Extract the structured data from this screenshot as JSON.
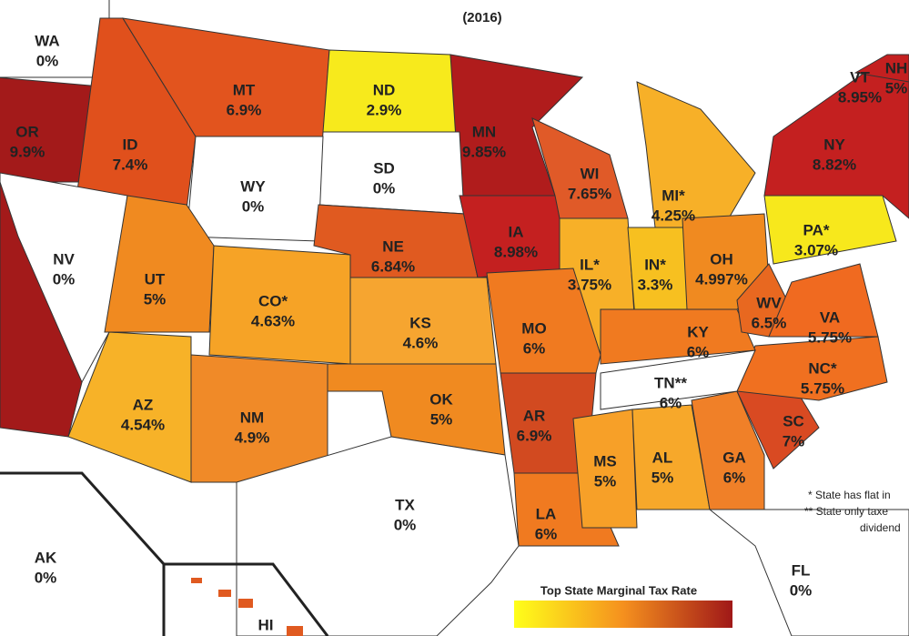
{
  "subtitle": "(2016)",
  "states": [
    {
      "abbr": "WA",
      "rate": "0%"
    },
    {
      "abbr": "OR",
      "rate": "9.9%"
    },
    {
      "abbr": "ID",
      "rate": "7.4%"
    },
    {
      "abbr": "MT",
      "rate": "6.9%"
    },
    {
      "abbr": "ND",
      "rate": "2.9%"
    },
    {
      "abbr": "MN",
      "rate": "9.85%"
    },
    {
      "abbr": "SD",
      "rate": "0%"
    },
    {
      "abbr": "WY",
      "rate": "0%"
    },
    {
      "abbr": "NV",
      "rate": "0%"
    },
    {
      "abbr": "UT",
      "rate": "5%"
    },
    {
      "abbr": "CO*",
      "rate": "4.63%"
    },
    {
      "abbr": "NE",
      "rate": "6.84%"
    },
    {
      "abbr": "KS",
      "rate": "4.6%"
    },
    {
      "abbr": "IA",
      "rate": "8.98%"
    },
    {
      "abbr": "WI",
      "rate": "7.65%"
    },
    {
      "abbr": "MI*",
      "rate": "4.25%"
    },
    {
      "abbr": "IL*",
      "rate": "3.75%"
    },
    {
      "abbr": "IN*",
      "rate": "3.3%"
    },
    {
      "abbr": "OH",
      "rate": "4.997%"
    },
    {
      "abbr": "PA*",
      "rate": "3.07%"
    },
    {
      "abbr": "NY",
      "rate": "8.82%"
    },
    {
      "abbr": "VT",
      "rate": "8.95%"
    },
    {
      "abbr": "NH",
      "rate": "5%"
    },
    {
      "abbr": "AZ",
      "rate": "4.54%"
    },
    {
      "abbr": "NM",
      "rate": "4.9%"
    },
    {
      "abbr": "OK",
      "rate": "5%"
    },
    {
      "abbr": "TX",
      "rate": "0%"
    },
    {
      "abbr": "MO",
      "rate": "6%"
    },
    {
      "abbr": "AR",
      "rate": "6.9%"
    },
    {
      "abbr": "LA",
      "rate": "6%"
    },
    {
      "abbr": "MS",
      "rate": "5%"
    },
    {
      "abbr": "AL",
      "rate": "5%"
    },
    {
      "abbr": "GA",
      "rate": "6%"
    },
    {
      "abbr": "SC",
      "rate": "7%"
    },
    {
      "abbr": "NC*",
      "rate": "5.75%"
    },
    {
      "abbr": "TN**",
      "rate": "6%"
    },
    {
      "abbr": "KY",
      "rate": "6%"
    },
    {
      "abbr": "WV",
      "rate": "6.5%"
    },
    {
      "abbr": "VA",
      "rate": "5.75%"
    },
    {
      "abbr": "FL",
      "rate": "0%"
    },
    {
      "abbr": "AK",
      "rate": "0%"
    },
    {
      "abbr": "HI",
      "rate": null
    }
  ],
  "legend": {
    "title": "Top State Marginal Tax Rate"
  },
  "notes": [
    "* State has flat in",
    "** State only taxe",
    "dividend"
  ]
}
